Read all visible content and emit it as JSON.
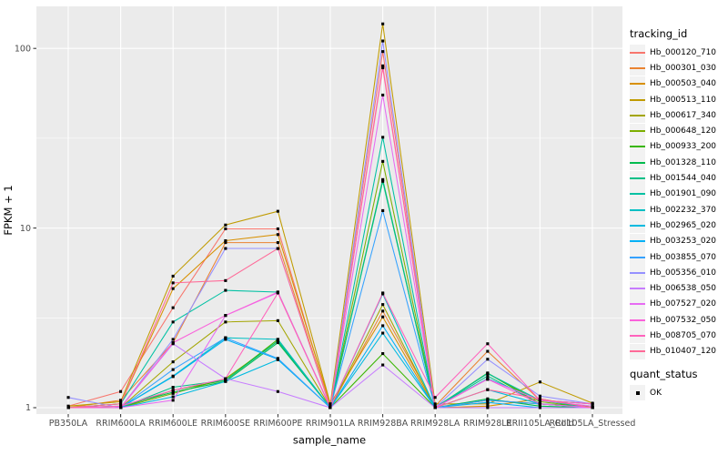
{
  "chart_data": {
    "type": "line",
    "title": "",
    "xlabel": "sample_name",
    "ylabel": "FPKM + 1",
    "y_scale": "log10",
    "ylim": [
      0.93,
      170
    ],
    "grid": "on",
    "legend_position": "right",
    "legend_title": "tracking_id",
    "secondary_legend": {
      "title": "quant_status",
      "entries": [
        "OK"
      ]
    },
    "point_shape": "square",
    "y_ticks": {
      "labels": [
        "100",
        "10",
        "1"
      ],
      "values": [
        100,
        10,
        1
      ]
    },
    "y_minor_gridlines": [
      3.1623,
      31.6228
    ],
    "categories": [
      "PB350LA",
      "RRIM600LA",
      "RRIM600LE",
      "RRIM600SE",
      "RRIM600PE",
      "RRIM901LA",
      "RRIM928BA",
      "RRIM928LA",
      "RRIM928LE",
      "RRII105LA_Cold",
      "RRII105LA_Stressed"
    ],
    "series": [
      {
        "name": "Hb_000120_710",
        "color": "#F8766D",
        "values": [
          1.02,
          1.23,
          3.6,
          9.9,
          9.9,
          1.02,
          96,
          1.0,
          1.1,
          1.05,
          1.0
        ]
      },
      {
        "name": "Hb_000301_030",
        "color": "#EA8331",
        "values": [
          1.0,
          1.1,
          2.3,
          8.3,
          8.3,
          1.0,
          3.45,
          1.02,
          2.06,
          1.1,
          1.05
        ]
      },
      {
        "name": "Hb_000503_040",
        "color": "#D89000",
        "values": [
          1.0,
          1.05,
          4.6,
          8.5,
          9.2,
          1.05,
          3.2,
          1.0,
          1.02,
          1.12,
          1.0
        ]
      },
      {
        "name": "Hb_000513_110",
        "color": "#C09B00",
        "values": [
          1.02,
          1.08,
          5.4,
          10.4,
          12.4,
          1.05,
          137,
          1.05,
          1.05,
          1.39,
          1.06
        ]
      },
      {
        "name": "Hb_000617_340",
        "color": "#A3A500",
        "values": [
          1.0,
          1.0,
          1.8,
          3.0,
          3.05,
          1.0,
          3.75,
          1.0,
          1.1,
          1.05,
          1.0
        ]
      },
      {
        "name": "Hb_000648_120",
        "color": "#7CAE00",
        "values": [
          1.0,
          1.0,
          1.2,
          1.45,
          2.35,
          1.0,
          23.5,
          1.0,
          1.55,
          1.08,
          1.0
        ]
      },
      {
        "name": "Hb_000933_200",
        "color": "#39B600",
        "values": [
          1.0,
          1.0,
          1.25,
          1.42,
          2.4,
          1.0,
          2.0,
          1.0,
          1.56,
          1.05,
          1.02
        ]
      },
      {
        "name": "Hb_001328_110",
        "color": "#00BB4E",
        "values": [
          1.0,
          1.02,
          1.22,
          1.4,
          2.3,
          1.0,
          18.6,
          1.0,
          1.12,
          1.02,
          1.0
        ]
      },
      {
        "name": "Hb_001544_040",
        "color": "#00C087",
        "values": [
          1.0,
          1.0,
          1.3,
          1.42,
          2.35,
          1.0,
          18.2,
          1.0,
          1.5,
          1.05,
          1.0
        ]
      },
      {
        "name": "Hb_001901_090",
        "color": "#00C1A3",
        "values": [
          1.0,
          1.05,
          3.0,
          4.5,
          4.4,
          1.0,
          32,
          1.0,
          1.55,
          1.1,
          1.05
        ]
      },
      {
        "name": "Hb_002232_370",
        "color": "#00BFC4",
        "values": [
          1.0,
          1.0,
          1.5,
          2.45,
          2.4,
          1.0,
          4.3,
          1.0,
          1.45,
          1.1,
          1.0
        ]
      },
      {
        "name": "Hb_002965_020",
        "color": "#00BAE0",
        "values": [
          1.0,
          1.0,
          1.15,
          1.4,
          1.85,
          1.0,
          2.6,
          1.0,
          1.26,
          1.05,
          1.0
        ]
      },
      {
        "name": "Hb_003253_020",
        "color": "#00B0F6",
        "values": [
          1.0,
          1.0,
          1.49,
          2.4,
          1.86,
          1.0,
          2.86,
          1.0,
          1.07,
          1.0,
          1.0
        ]
      },
      {
        "name": "Hb_003855_070",
        "color": "#35A2FF",
        "values": [
          1.0,
          1.0,
          1.63,
          2.45,
          1.88,
          1.0,
          12.5,
          1.0,
          1.1,
          1.05,
          1.0
        ]
      },
      {
        "name": "Hb_005356_010",
        "color": "#9590FF",
        "values": [
          1.14,
          1.0,
          2.4,
          7.7,
          7.7,
          1.0,
          110,
          1.0,
          1.86,
          1.16,
          1.05
        ]
      },
      {
        "name": "Hb_006538_050",
        "color": "#C77CFF",
        "values": [
          1.0,
          1.0,
          2.27,
          1.45,
          1.23,
          1.0,
          1.73,
          1.0,
          1.0,
          1.0,
          1.0
        ]
      },
      {
        "name": "Hb_007527_020",
        "color": "#E76BF3",
        "values": [
          1.0,
          1.0,
          1.1,
          3.26,
          4.37,
          1.0,
          55,
          1.0,
          1.44,
          1.1,
          1.02
        ]
      },
      {
        "name": "Hb_007532_050",
        "color": "#FA62DB",
        "values": [
          1.0,
          1.0,
          2.3,
          3.26,
          4.4,
          1.0,
          80,
          1.0,
          1.44,
          1.05,
          1.0
        ]
      },
      {
        "name": "Hb_008705_070",
        "color": "#FF62BC",
        "values": [
          1.0,
          1.02,
          1.25,
          1.45,
          4.35,
          1.0,
          4.35,
          1.14,
          2.27,
          1.1,
          1.05
        ]
      },
      {
        "name": "Hb_010407_120",
        "color": "#FF6A98",
        "values": [
          1.0,
          1.05,
          4.95,
          5.1,
          7.7,
          1.0,
          78,
          1.0,
          1.26,
          1.12,
          1.0
        ]
      }
    ],
    "style": {
      "page_background": "#FFFFFF",
      "panel_background": "#EBEBEB",
      "grid_color": "#FFFFFF",
      "point_color": "#000000",
      "tick_text_color": "#4D4D4D",
      "tick_mark_color": "#333333",
      "legend_key_background": "#F2F2F2"
    }
  }
}
